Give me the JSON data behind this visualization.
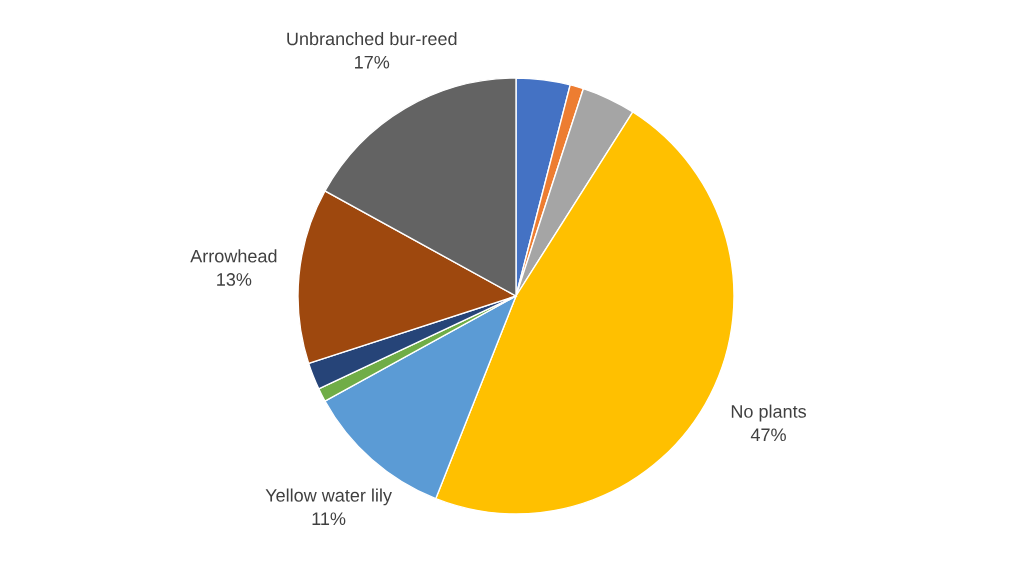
{
  "chart_data": {
    "type": "pie",
    "categories": [
      null,
      null,
      null,
      "No plants",
      "Yellow water lily",
      null,
      null,
      "Arrowhead",
      "Unbranched bur-reed"
    ],
    "values": [
      4,
      1,
      4,
      47,
      11,
      1,
      2,
      13,
      17
    ],
    "value_labels": [
      null,
      null,
      null,
      "47%",
      "11%",
      null,
      null,
      "13%",
      "17%"
    ],
    "colors": [
      "#4472c4",
      "#ed7d31",
      "#a5a5a5",
      "#ffc000",
      "#5b9bd5",
      "#70ad47",
      "#264478",
      "#9e480e",
      "#636363"
    ],
    "legend": false
  }
}
